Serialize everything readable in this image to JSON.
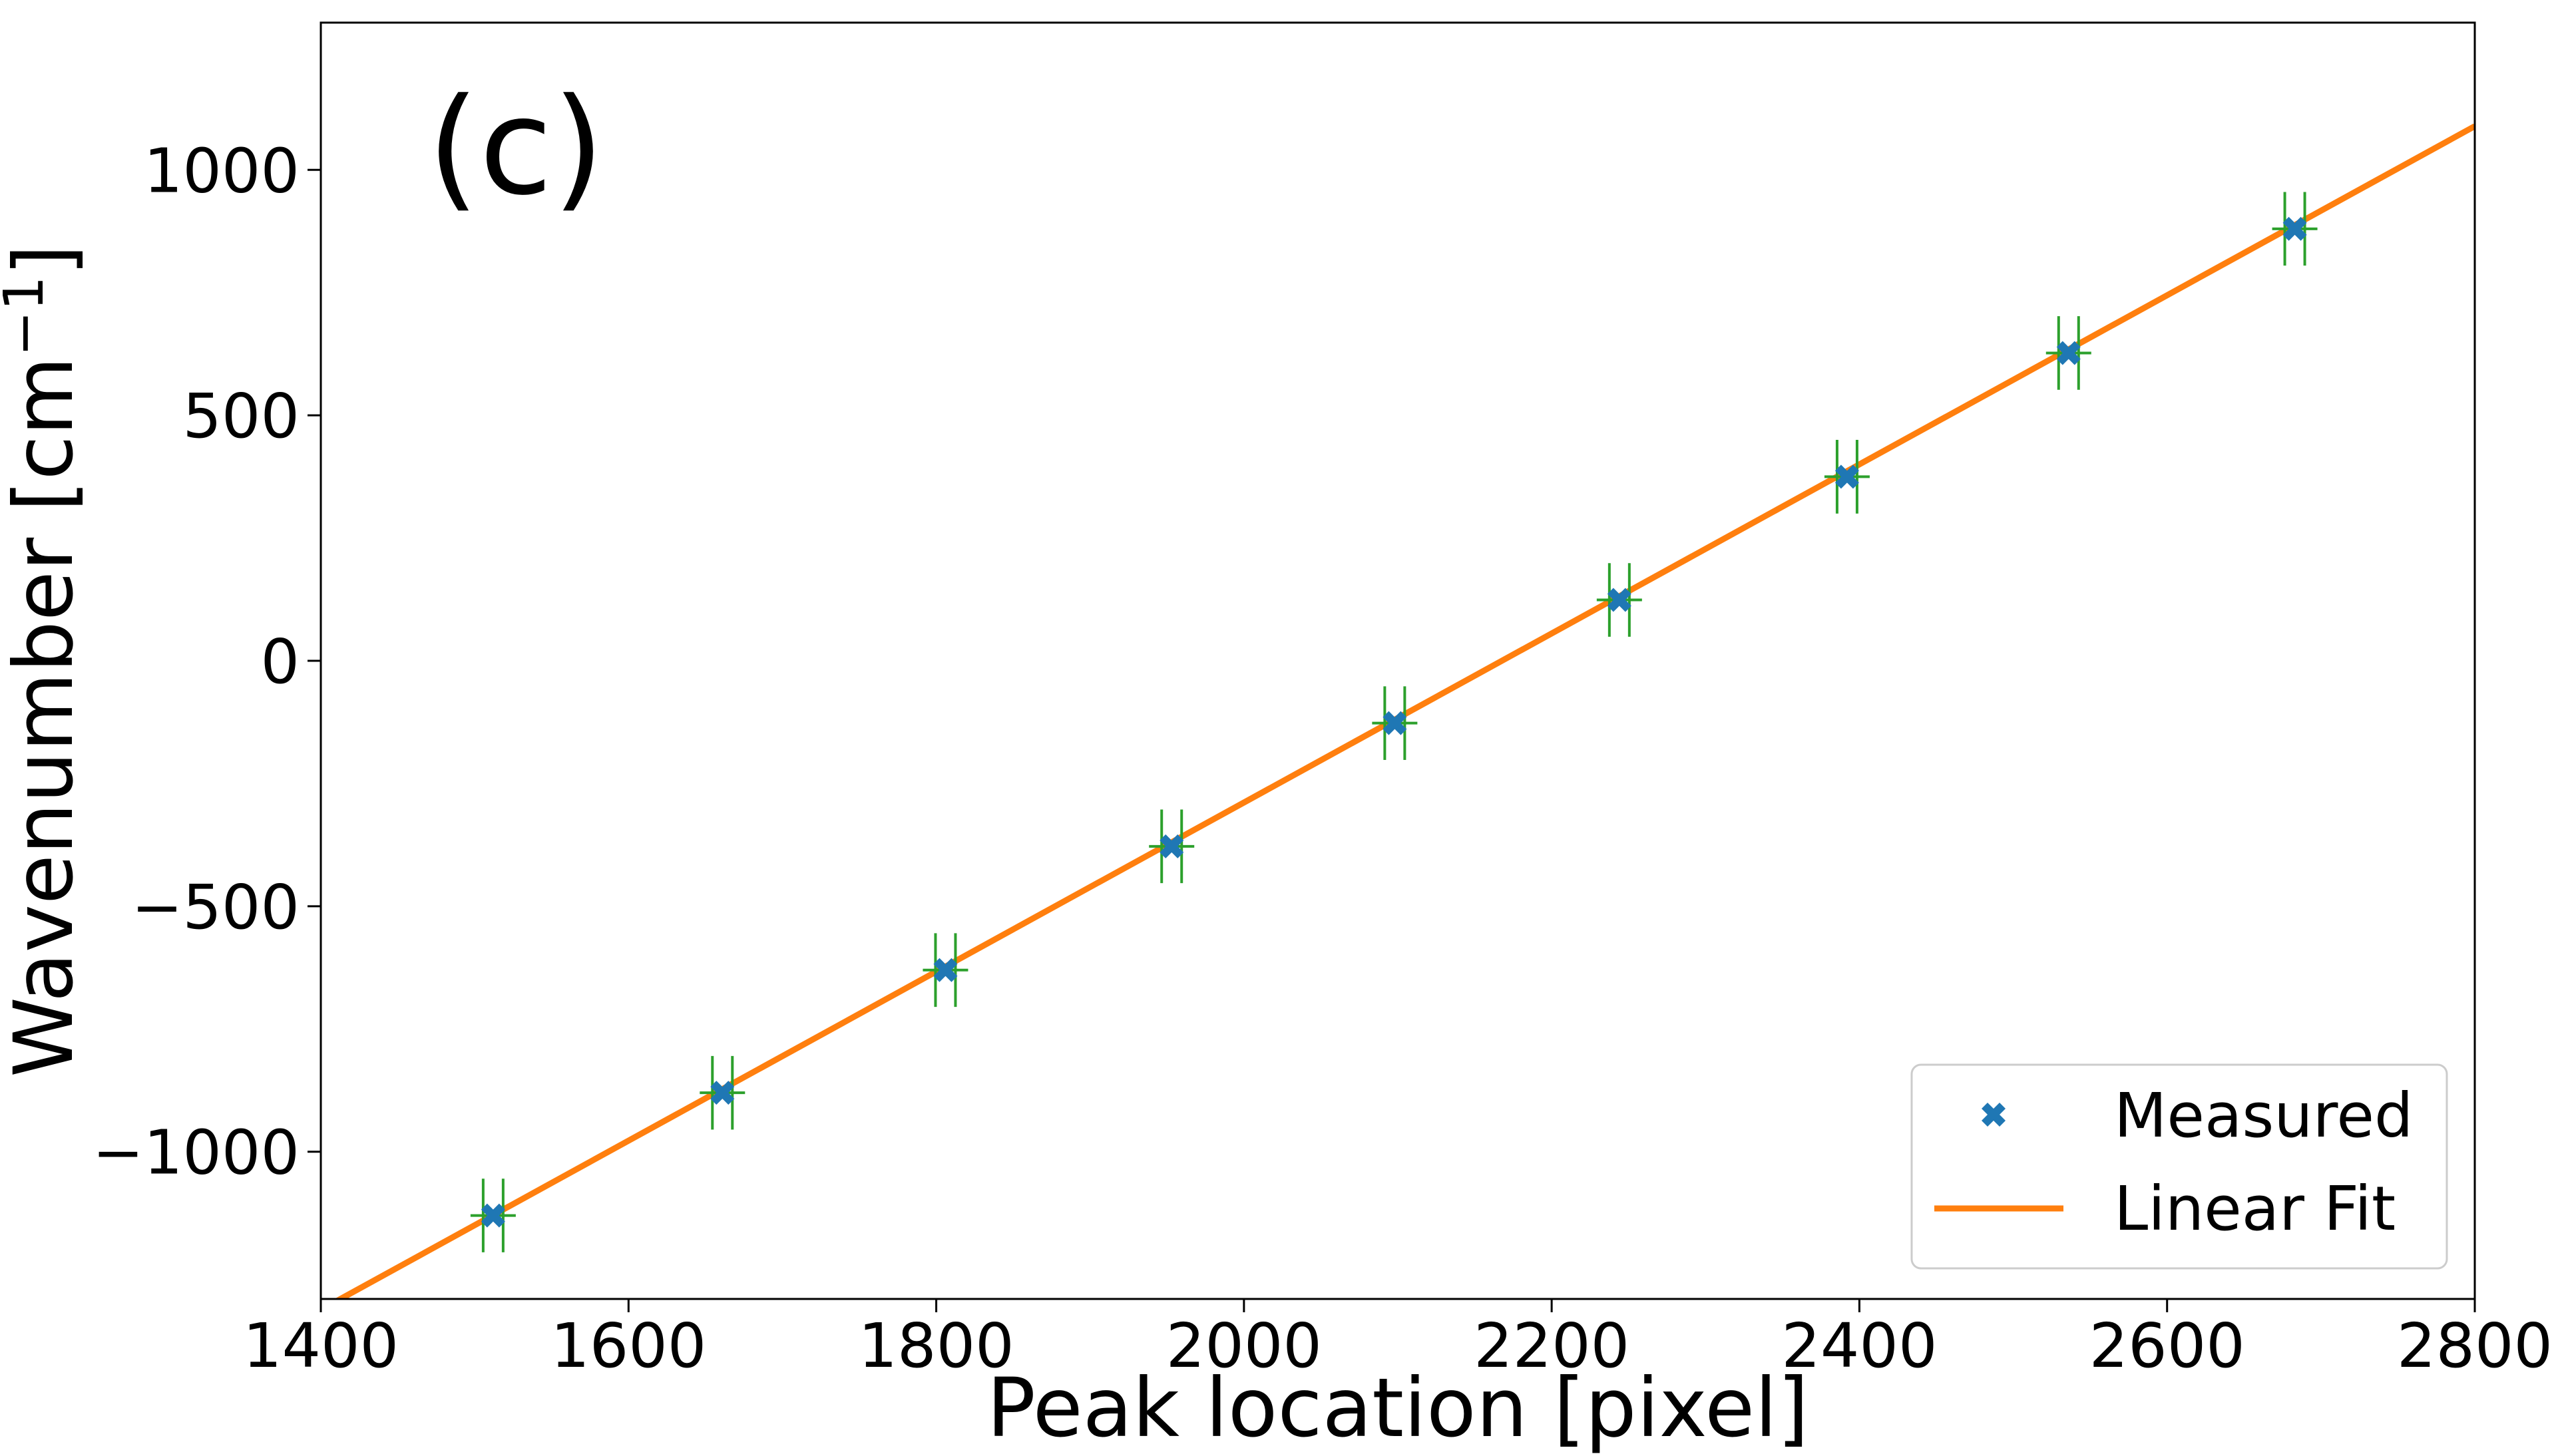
{
  "chart_data": {
    "type": "scatter",
    "panel_label": "(c)",
    "xlabel": "Peak location [pixel]",
    "ylabel_main": "Wavenumber [cm",
    "ylabel_sup": "−1",
    "ylabel_close": "]",
    "xlim": [
      1400,
      2800
    ],
    "ylim": [
      -1300,
      1300
    ],
    "xticks": [
      1400,
      1600,
      1800,
      2000,
      2200,
      2400,
      2600,
      2800
    ],
    "xtick_labels": [
      "1400",
      "1600",
      "1800",
      "2000",
      "2200",
      "2400",
      "2600",
      "2800"
    ],
    "yticks": [
      -1000,
      -500,
      0,
      500,
      1000
    ],
    "ytick_labels": [
      "−1000",
      "−500",
      "0",
      "500",
      "1000"
    ],
    "grid": false,
    "legend_position": "lower-right",
    "series": [
      {
        "name": "Measured",
        "kind": "markers",
        "marker": "x",
        "color": "#1f77b4",
        "errorbar_color": "#2ca02c",
        "y_error": 75,
        "x": [
          1512,
          1661,
          1806,
          1953,
          2098,
          2244,
          2392,
          2536,
          2683
        ],
        "y": [
          -1130,
          -880,
          -630,
          -378,
          -127,
          124,
          375,
          627,
          880
        ]
      },
      {
        "name": "Linear Fit",
        "kind": "line",
        "color": "#ff7f0e",
        "x": [
          1400,
          2800
        ],
        "y": [
          -1322,
          1089
        ]
      }
    ]
  }
}
